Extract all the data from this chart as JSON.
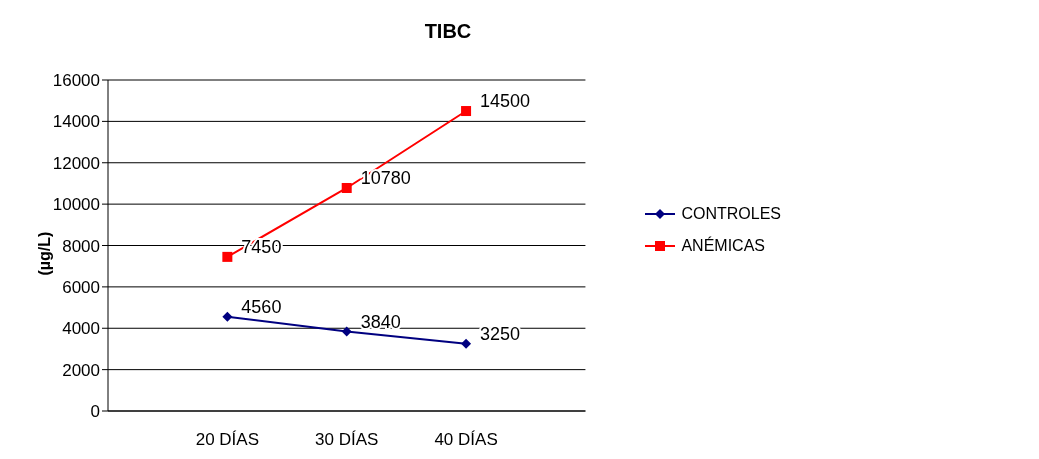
{
  "chart_data": {
    "type": "line",
    "title": "TIBC",
    "ylabel": "(µg/L)",
    "categories": [
      "20 DÍAS",
      "30 DÍAS",
      "40 DÍAS"
    ],
    "series": [
      {
        "name": "CONTROLES",
        "color": "#000080",
        "marker": "diamond",
        "values": [
          4560,
          3840,
          3250
        ]
      },
      {
        "name": "ANÉMICAS",
        "color": "#ff0000",
        "marker": "square",
        "values": [
          7450,
          10780,
          14500
        ]
      }
    ],
    "ylim": [
      0,
      16000
    ],
    "yticks": [
      0,
      2000,
      4000,
      6000,
      8000,
      10000,
      12000,
      14000,
      16000
    ],
    "grid": "y",
    "legend": "right",
    "data_labels": true
  }
}
